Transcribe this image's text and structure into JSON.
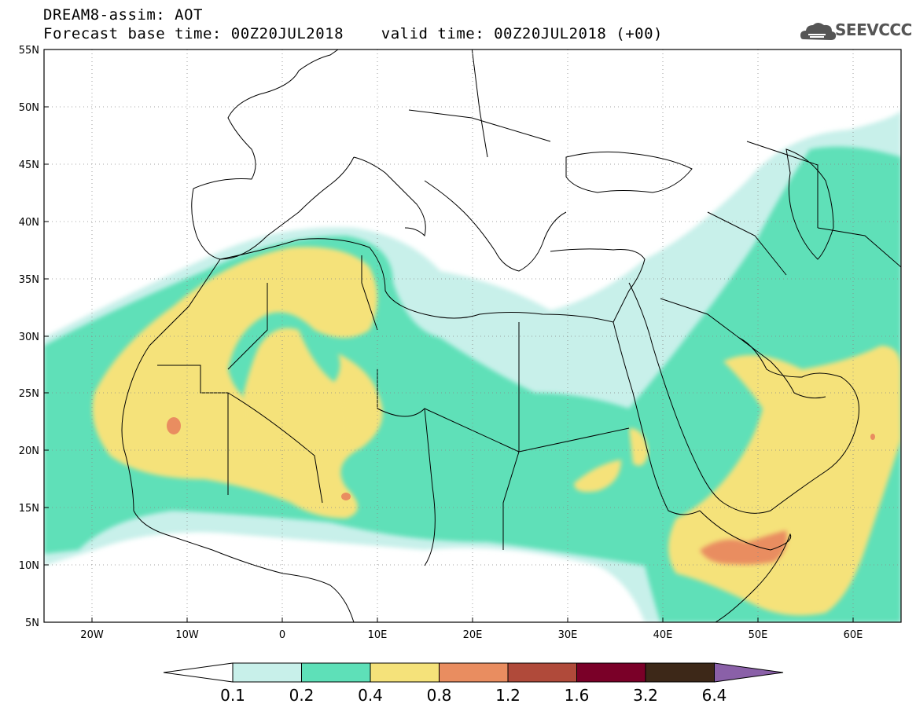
{
  "header": {
    "title_line1": "DREAM8-assim: AOT",
    "title_line2": "Forecast base time: 00Z20JUL2018    valid time: 00Z20JUL2018 (+00)"
  },
  "logo": {
    "text": "SEEVCCC",
    "icon": "cloud-icon"
  },
  "map": {
    "lat_labels": [
      "55N",
      "50N",
      "45N",
      "40N",
      "35N",
      "30N",
      "25N",
      "20N",
      "15N",
      "10N",
      "5N"
    ],
    "lon_labels": [
      "20W",
      "10W",
      "0",
      "10E",
      "20E",
      "30E",
      "40E",
      "50E",
      "60E"
    ]
  },
  "legend": {
    "labels": [
      "0.1",
      "0.2",
      "0.4",
      "0.8",
      "1.2",
      "1.6",
      "3.2",
      "6.4"
    ],
    "colors": {
      "low_arrow": "#ffffff",
      "c1": "#c8f0ea",
      "c2": "#5ee0b8",
      "c3": "#f5e27a",
      "c4": "#e98d60",
      "c5": "#b04a3a",
      "c6": "#7a0028",
      "c7": "#3d2818",
      "high_arrow": "#8a60a8"
    }
  }
}
